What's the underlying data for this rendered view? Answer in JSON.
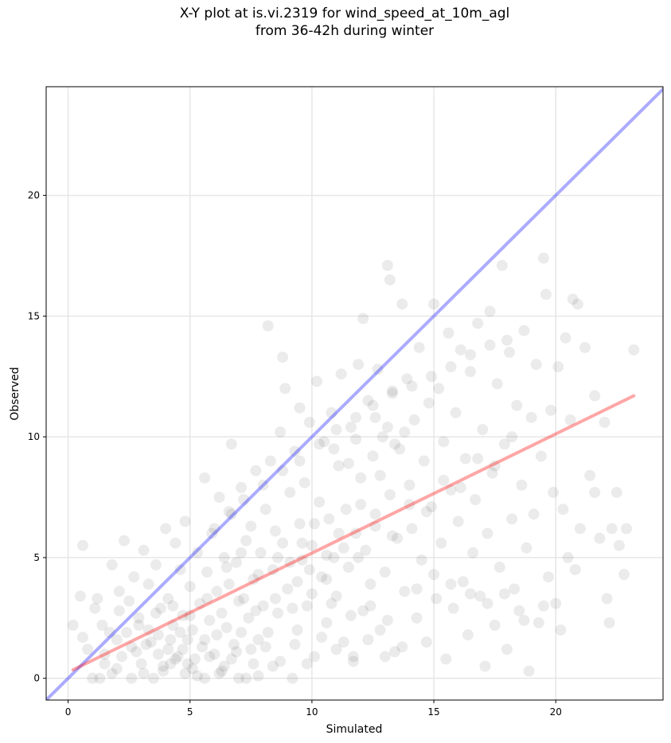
{
  "chart_data": {
    "type": "scatter",
    "title_lines": [
      "X-Y plot at is.vi.2319 for wind_speed_at_10m_agl",
      "from 36-42h during winter"
    ],
    "xlabel": "Simulated",
    "ylabel": "Observed",
    "xlim": [
      -0.9,
      24.4
    ],
    "ylim": [
      -0.9,
      24.5
    ],
    "xticks": [
      0,
      5,
      10,
      15,
      20
    ],
    "yticks": [
      0,
      5,
      10,
      15,
      20
    ],
    "grid": true,
    "point_color": "#000000",
    "point_opacity": 0.08,
    "identity_line": {
      "color": "#0000ff",
      "opacity": 0.33,
      "from": [
        -0.9,
        -0.9
      ],
      "to": [
        24.4,
        24.4
      ]
    },
    "regression_line": {
      "color": "#ff0000",
      "opacity": 0.35,
      "from": [
        0.2,
        0.35
      ],
      "to": [
        23.2,
        11.7
      ]
    },
    "points": [
      [
        0.2,
        2.2
      ],
      [
        0.5,
        3.4
      ],
      [
        0.6,
        5.5
      ],
      [
        0.6,
        1.7
      ],
      [
        0.8,
        1.2
      ],
      [
        1.0,
        0.0
      ],
      [
        1.1,
        2.9
      ],
      [
        1.2,
        3.3
      ],
      [
        1.3,
        0.0
      ],
      [
        1.4,
        2.2
      ],
      [
        1.5,
        0.6
      ],
      [
        1.7,
        1.9
      ],
      [
        1.8,
        4.7
      ],
      [
        1.8,
        0.2
      ],
      [
        2.0,
        1.6
      ],
      [
        2.1,
        3.6
      ],
      [
        2.1,
        2.8
      ],
      [
        2.2,
        0.9
      ],
      [
        2.3,
        5.7
      ],
      [
        2.4,
        1.9
      ],
      [
        2.5,
        3.2
      ],
      [
        2.6,
        0.0
      ],
      [
        2.7,
        4.2
      ],
      [
        2.8,
        1.1
      ],
      [
        2.9,
        2.5
      ],
      [
        3.0,
        0.6
      ],
      [
        3.1,
        5.3
      ],
      [
        3.2,
        1.4
      ],
      [
        3.3,
        3.9
      ],
      [
        3.3,
        2.0
      ],
      [
        3.5,
        0.0
      ],
      [
        3.6,
        4.7
      ],
      [
        3.7,
        1.8
      ],
      [
        3.8,
        2.9
      ],
      [
        3.9,
        0.5
      ],
      [
        4.0,
        6.2
      ],
      [
        4.1,
        1.2
      ],
      [
        4.1,
        3.3
      ],
      [
        4.2,
        0.6
      ],
      [
        4.3,
        2.2
      ],
      [
        4.4,
        5.6
      ],
      [
        4.5,
        0.9
      ],
      [
        4.6,
        4.5
      ],
      [
        4.7,
        2.6
      ],
      [
        4.8,
        6.5
      ],
      [
        4.8,
        0.2
      ],
      [
        4.9,
        1.6
      ],
      [
        5.0,
        3.8
      ],
      [
        5.1,
        2.0
      ],
      [
        5.2,
        0.8
      ],
      [
        5.3,
        5.2
      ],
      [
        5.4,
        3.1
      ],
      [
        5.5,
        1.3
      ],
      [
        5.6,
        8.3
      ],
      [
        5.6,
        0.0
      ],
      [
        5.7,
        4.4
      ],
      [
        5.8,
        2.4
      ],
      [
        5.9,
        6.0
      ],
      [
        6.0,
        1.0
      ],
      [
        6.1,
        3.6
      ],
      [
        6.2,
        7.5
      ],
      [
        6.3,
        0.3
      ],
      [
        6.4,
        5.0
      ],
      [
        6.5,
        2.1
      ],
      [
        6.6,
        3.9
      ],
      [
        6.7,
        9.7
      ],
      [
        6.7,
        6.8
      ],
      [
        6.8,
        1.4
      ],
      [
        6.9,
        4.8
      ],
      [
        7.0,
        0.0
      ],
      [
        7.1,
        7.9
      ],
      [
        7.2,
        3.3
      ],
      [
        7.3,
        5.7
      ],
      [
        7.4,
        2.5
      ],
      [
        7.5,
        1.2
      ],
      [
        7.5,
        6.3
      ],
      [
        7.6,
        4.1
      ],
      [
        7.7,
        8.6
      ],
      [
        7.8,
        0.1
      ],
      [
        7.9,
        5.2
      ],
      [
        8.0,
        3.0
      ],
      [
        8.1,
        7.0
      ],
      [
        8.2,
        1.9
      ],
      [
        8.2,
        14.6
      ],
      [
        8.3,
        9.0
      ],
      [
        8.4,
        4.5
      ],
      [
        8.5,
        6.1
      ],
      [
        8.6,
        2.7
      ],
      [
        8.7,
        10.2
      ],
      [
        8.8,
        13.3
      ],
      [
        8.8,
        5.6
      ],
      [
        8.9,
        12.0
      ],
      [
        9.0,
        3.7
      ],
      [
        9.1,
        7.7
      ],
      [
        9.2,
        0.0
      ],
      [
        9.3,
        9.4
      ],
      [
        9.4,
        2.0
      ],
      [
        9.5,
        6.4
      ],
      [
        9.5,
        11.2
      ],
      [
        9.6,
        4.9
      ],
      [
        9.7,
        8.1
      ],
      [
        9.8,
        3.0
      ],
      [
        9.9,
        10.6
      ],
      [
        10.0,
        5.5
      ],
      [
        10.1,
        0.9
      ],
      [
        10.2,
        12.3
      ],
      [
        10.3,
        7.3
      ],
      [
        10.4,
        4.2
      ],
      [
        10.5,
        9.8
      ],
      [
        10.6,
        2.3
      ],
      [
        10.7,
        6.6
      ],
      [
        10.8,
        11.0
      ],
      [
        10.9,
        5.0
      ],
      [
        11.0,
        3.4
      ],
      [
        11.1,
        8.8
      ],
      [
        11.2,
        12.6
      ],
      [
        11.3,
        1.5
      ],
      [
        11.4,
        7.0
      ],
      [
        11.5,
        4.6
      ],
      [
        11.6,
        10.4
      ],
      [
        11.7,
        0.7
      ],
      [
        11.8,
        6.0
      ],
      [
        11.9,
        13.0
      ],
      [
        12.0,
        8.3
      ],
      [
        12.1,
        2.8
      ],
      [
        12.1,
        14.9
      ],
      [
        12.2,
        5.3
      ],
      [
        12.3,
        11.5
      ],
      [
        12.4,
        3.9
      ],
      [
        12.5,
        9.2
      ],
      [
        12.6,
        6.8
      ],
      [
        12.7,
        12.8
      ],
      [
        12.8,
        2.0
      ],
      [
        12.9,
        10.0
      ],
      [
        13.0,
        4.4
      ],
      [
        13.1,
        17.1
      ],
      [
        13.2,
        16.5
      ],
      [
        13.2,
        7.6
      ],
      [
        13.3,
        11.9
      ],
      [
        13.4,
        1.1
      ],
      [
        13.5,
        5.8
      ],
      [
        13.6,
        9.5
      ],
      [
        13.7,
        15.5
      ],
      [
        13.8,
        3.6
      ],
      [
        13.9,
        12.4
      ],
      [
        14.0,
        8.0
      ],
      [
        14.1,
        6.2
      ],
      [
        14.2,
        10.7
      ],
      [
        14.3,
        2.5
      ],
      [
        14.4,
        13.7
      ],
      [
        14.5,
        4.9
      ],
      [
        14.6,
        9.0
      ],
      [
        14.7,
        1.5
      ],
      [
        14.8,
        11.4
      ],
      [
        14.9,
        7.1
      ],
      [
        15.0,
        15.5
      ],
      [
        15.1,
        3.3
      ],
      [
        15.2,
        12.0
      ],
      [
        15.3,
        5.6
      ],
      [
        15.4,
        9.8
      ],
      [
        15.5,
        0.8
      ],
      [
        15.6,
        14.3
      ],
      [
        15.7,
        7.8
      ],
      [
        15.8,
        2.9
      ],
      [
        15.9,
        11.0
      ],
      [
        16.0,
        6.5
      ],
      [
        16.1,
        13.6
      ],
      [
        16.2,
        4.0
      ],
      [
        16.3,
        9.1
      ],
      [
        16.4,
        1.8
      ],
      [
        16.5,
        12.7
      ],
      [
        16.6,
        5.2
      ],
      [
        16.7,
        7.4
      ],
      [
        16.8,
        14.7
      ],
      [
        16.9,
        3.4
      ],
      [
        17.0,
        10.3
      ],
      [
        17.1,
        0.5
      ],
      [
        17.2,
        6.0
      ],
      [
        17.3,
        15.2
      ],
      [
        17.4,
        8.5
      ],
      [
        17.5,
        2.2
      ],
      [
        17.6,
        12.2
      ],
      [
        17.7,
        4.6
      ],
      [
        17.8,
        17.1
      ],
      [
        17.9,
        9.7
      ],
      [
        18.0,
        1.2
      ],
      [
        18.1,
        13.5
      ],
      [
        18.2,
        6.6
      ],
      [
        18.3,
        3.7
      ],
      [
        18.4,
        11.3
      ],
      [
        18.5,
        2.8
      ],
      [
        18.6,
        8.0
      ],
      [
        18.7,
        14.4
      ],
      [
        18.8,
        5.4
      ],
      [
        18.9,
        0.3
      ],
      [
        19.0,
        10.8
      ],
      [
        19.1,
        6.8
      ],
      [
        19.2,
        13.0
      ],
      [
        19.3,
        2.3
      ],
      [
        19.4,
        9.2
      ],
      [
        19.5,
        17.4
      ],
      [
        19.6,
        15.9
      ],
      [
        19.7,
        4.2
      ],
      [
        19.8,
        11.1
      ],
      [
        19.9,
        7.7
      ],
      [
        20.0,
        3.1
      ],
      [
        20.1,
        12.9
      ],
      [
        20.2,
        2.0
      ],
      [
        20.3,
        7.0
      ],
      [
        20.4,
        14.1
      ],
      [
        20.5,
        5.0
      ],
      [
        20.6,
        10.7
      ],
      [
        20.7,
        15.7
      ],
      [
        20.8,
        4.5
      ],
      [
        20.9,
        15.5
      ],
      [
        21.0,
        6.2
      ],
      [
        21.2,
        13.7
      ],
      [
        21.4,
        8.4
      ],
      [
        21.6,
        11.7
      ],
      [
        21.6,
        7.7
      ],
      [
        21.8,
        5.8
      ],
      [
        22.0,
        10.6
      ],
      [
        22.1,
        3.3
      ],
      [
        22.2,
        2.3
      ],
      [
        22.3,
        6.2
      ],
      [
        22.5,
        7.7
      ],
      [
        22.6,
        5.5
      ],
      [
        22.8,
        4.3
      ],
      [
        22.9,
        6.2
      ],
      [
        23.2,
        13.6
      ],
      [
        3.4,
        1.5
      ],
      [
        3.9,
        0.3
      ],
      [
        4.4,
        0.8
      ],
      [
        4.6,
        1.9
      ],
      [
        4.9,
        0.6
      ],
      [
        5.3,
        0.1
      ],
      [
        5.8,
        0.9
      ],
      [
        6.1,
        1.8
      ],
      [
        6.4,
        0.5
      ],
      [
        6.9,
        1.1
      ],
      [
        7.3,
        0.0
      ],
      [
        7.8,
        1.6
      ],
      [
        8.4,
        0.5
      ],
      [
        2.9,
        2.2
      ],
      [
        3.6,
        2.7
      ],
      [
        4.3,
        3.0
      ],
      [
        5.0,
        2.6
      ],
      [
        5.7,
        3.3
      ],
      [
        6.3,
        2.7
      ],
      [
        7.0,
        3.2
      ],
      [
        7.7,
        2.8
      ],
      [
        8.5,
        3.3
      ],
      [
        9.2,
        2.9
      ],
      [
        9.9,
        4.5
      ],
      [
        10.6,
        4.1
      ],
      [
        11.3,
        5.4
      ],
      [
        11.9,
        5.0
      ],
      [
        12.6,
        6.3
      ],
      [
        13.3,
        5.9
      ],
      [
        14.0,
        7.2
      ],
      [
        14.7,
        6.9
      ],
      [
        15.4,
        8.2
      ],
      [
        16.1,
        7.9
      ],
      [
        16.8,
        9.1
      ],
      [
        17.5,
        8.8
      ],
      [
        18.2,
        10.0
      ],
      [
        9.1,
        4.8
      ],
      [
        9.6,
        5.6
      ],
      [
        10.1,
        6.4
      ],
      [
        10.6,
        5.1
      ],
      [
        11.1,
        6.0
      ],
      [
        12.0,
        7.2
      ],
      [
        12.8,
        8.4
      ],
      [
        13.1,
        10.4
      ],
      [
        13.4,
        9.7
      ],
      [
        13.8,
        10.2
      ],
      [
        12.6,
        10.8
      ],
      [
        11.8,
        9.9
      ],
      [
        11.5,
        8.9
      ],
      [
        10.9,
        9.5
      ],
      [
        6.5,
        4.6
      ],
      [
        7.1,
        5.2
      ],
      [
        7.8,
        4.3
      ],
      [
        8.6,
        5.0
      ],
      [
        9.4,
        4.0
      ],
      [
        10.0,
        3.5
      ],
      [
        10.8,
        3.1
      ],
      [
        11.6,
        2.6
      ],
      [
        12.4,
        3.0
      ],
      [
        13.1,
        2.4
      ],
      [
        14.3,
        3.7
      ],
      [
        15.0,
        4.3
      ],
      [
        15.7,
        3.9
      ],
      [
        16.5,
        3.5
      ],
      [
        17.2,
        3.1
      ],
      [
        17.9,
        3.5
      ],
      [
        18.7,
        2.4
      ],
      [
        19.5,
        3.0
      ],
      [
        6.0,
        6.2
      ],
      [
        6.6,
        6.9
      ],
      [
        7.2,
        7.4
      ],
      [
        8.0,
        8.0
      ],
      [
        8.8,
        8.6
      ],
      [
        9.5,
        9.0
      ],
      [
        10.3,
        9.7
      ],
      [
        11.0,
        10.3
      ],
      [
        11.8,
        10.8
      ],
      [
        12.5,
        11.3
      ],
      [
        13.3,
        11.8
      ],
      [
        14.1,
        12.1
      ],
      [
        14.9,
        12.5
      ],
      [
        15.7,
        12.9
      ],
      [
        16.5,
        13.4
      ],
      [
        17.3,
        13.8
      ],
      [
        18.0,
        14.0
      ],
      [
        1.5,
        1.0
      ],
      [
        2.0,
        0.4
      ],
      [
        2.6,
        1.3
      ],
      [
        3.1,
        0.2
      ],
      [
        3.7,
        1.0
      ],
      [
        4.2,
        1.6
      ],
      [
        4.7,
        1.2
      ],
      [
        5.1,
        0.4
      ],
      [
        5.6,
        1.6
      ],
      [
        6.2,
        0.2
      ],
      [
        6.7,
        0.8
      ],
      [
        7.1,
        1.9
      ],
      [
        7.6,
        0.6
      ],
      [
        8.1,
        1.3
      ],
      [
        8.7,
        0.7
      ],
      [
        9.3,
        1.4
      ],
      [
        9.8,
        0.6
      ],
      [
        10.4,
        1.7
      ],
      [
        11.0,
        1.2
      ],
      [
        11.7,
        0.9
      ],
      [
        12.3,
        1.6
      ],
      [
        13.0,
        0.9
      ],
      [
        13.7,
        1.3
      ]
    ]
  }
}
